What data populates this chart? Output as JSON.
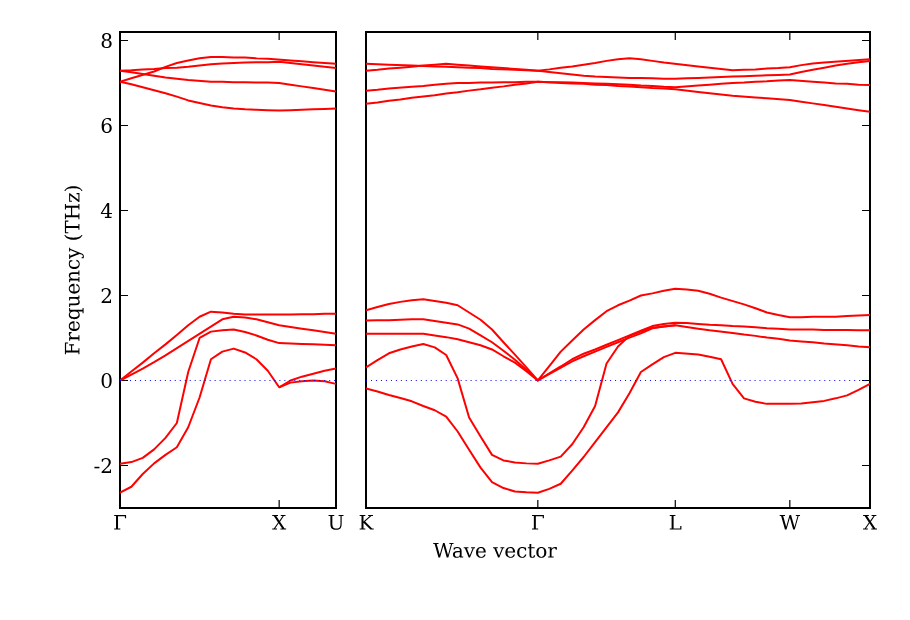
{
  "chart_data": [
    {
      "type": "line",
      "ylabel": "Frequency (THz)",
      "xlabel": "Wave vector",
      "ylim": [
        -3,
        8.2
      ],
      "categories": [
        "Γ",
        null,
        null,
        null,
        null,
        null,
        null,
        null,
        null,
        null,
        null,
        null,
        null,
        null,
        "X",
        null,
        null,
        null,
        null,
        "U"
      ],
      "yticks": [
        -2,
        0,
        2,
        4,
        6,
        8
      ],
      "ref_lines": [
        {
          "axis": "y",
          "value": 0,
          "color": "#0000ff",
          "line_style": "dotted"
        }
      ],
      "series": [
        {
          "color": "#ff0000",
          "values": [
            -2.64,
            -2.5,
            -2.2,
            -1.95,
            -1.75,
            -1.57,
            -1.1,
            -0.4,
            0.5,
            0.68,
            0.75,
            0.66,
            0.5,
            0.23,
            -0.16,
            -0.05,
            -0.02,
            0,
            -0.02,
            -0.08
          ]
        },
        {
          "color": "#ff0000",
          "values": [
            -1.96,
            -1.92,
            -1.82,
            -1.62,
            -1.35,
            -1.0,
            0.2,
            1.0,
            1.15,
            1.18,
            1.2,
            1.14,
            1.06,
            0.96,
            0.88,
            0.87,
            0.86,
            0.85,
            0.84,
            0.83
          ]
        },
        {
          "color": "#ff0000",
          "values": [
            0,
            0.21,
            0.42,
            0.64,
            0.85,
            1.07,
            1.3,
            1.5,
            1.62,
            1.6,
            1.57,
            1.55,
            1.55,
            1.55,
            1.55,
            1.55,
            1.56,
            1.56,
            1.57,
            1.57
          ]
        },
        {
          "color": "#ff0000",
          "values": [
            0,
            0.14,
            0.28,
            0.43,
            0.59,
            0.76,
            0.93,
            1.1,
            1.27,
            1.44,
            1.5,
            1.48,
            1.44,
            1.37,
            1.3,
            1.26,
            1.22,
            1.18,
            1.14,
            1.1
          ]
        },
        {
          "color": "#ff0000",
          "values": [
            null,
            null,
            null,
            null,
            null,
            null,
            null,
            null,
            null,
            null,
            null,
            null,
            null,
            null,
            -0.16,
            0.0,
            0.09,
            0.16,
            0.23,
            0.28
          ]
        },
        {
          "color": "#ff0000",
          "values": [
            7.03,
            7.11,
            7.19,
            7.27,
            7.38,
            7.47,
            7.53,
            7.58,
            7.61,
            7.61,
            7.6,
            7.6,
            7.58,
            7.57,
            7.55,
            7.53,
            7.51,
            7.49,
            7.47,
            7.45
          ]
        },
        {
          "color": "#ff0000",
          "values": [
            7.29,
            7.3,
            7.32,
            7.33,
            7.35,
            7.36,
            7.38,
            7.41,
            7.44,
            7.46,
            7.47,
            7.48,
            7.49,
            7.49,
            7.5,
            7.47,
            7.44,
            7.41,
            7.38,
            7.35
          ]
        },
        {
          "color": "#ff0000",
          "values": [
            7.29,
            7.25,
            7.21,
            7.17,
            7.13,
            7.1,
            7.07,
            7.05,
            7.03,
            7.03,
            7.02,
            7.02,
            7.01,
            7.01,
            7.0,
            6.96,
            6.92,
            6.88,
            6.84,
            6.8
          ]
        },
        {
          "color": "#ff0000",
          "values": [
            7.03,
            6.97,
            6.9,
            6.83,
            6.76,
            6.68,
            6.59,
            6.53,
            6.47,
            6.43,
            6.4,
            6.38,
            6.37,
            6.36,
            6.35,
            6.36,
            6.37,
            6.38,
            6.39,
            6.4
          ]
        }
      ]
    },
    {
      "type": "line",
      "ylim": [
        -3,
        8.2
      ],
      "categories": [
        "K",
        null,
        null,
        null,
        null,
        null,
        null,
        null,
        null,
        null,
        null,
        null,
        null,
        null,
        null,
        "Γ",
        null,
        null,
        null,
        null,
        null,
        null,
        null,
        null,
        null,
        null,
        null,
        "L",
        null,
        null,
        null,
        null,
        null,
        null,
        null,
        null,
        null,
        "W",
        null,
        null,
        null,
        null,
        null,
        null,
        "X"
      ],
      "yticks": [
        -2,
        0,
        2,
        4,
        6,
        8
      ],
      "tick_labels": "x",
      "ref_lines": [
        {
          "axis": "y",
          "value": 0,
          "color": "#0000ff",
          "line_style": "dotted"
        }
      ],
      "series": [
        {
          "color": "#ff0000",
          "values": [
            1.65,
            1.73,
            1.8,
            1.85,
            1.89,
            1.91,
            1.87,
            1.83,
            1.77,
            1.6,
            1.43,
            1.2,
            0.9,
            0.61,
            0.31,
            0,
            0.34,
            0.68,
            0.94,
            1.2,
            1.42,
            1.63,
            1.77,
            1.88,
            2.0,
            2.05,
            2.11,
            2.16,
            2.14,
            2.11,
            2.04,
            1.95,
            1.87,
            1.79,
            1.7,
            1.6,
            1.54,
            1.49,
            1.49,
            1.5,
            1.5,
            1.5,
            1.52,
            1.53,
            1.54
          ]
        },
        {
          "color": "#ff0000",
          "values": [
            1.41,
            1.42,
            1.42,
            1.43,
            1.44,
            1.44,
            1.4,
            1.36,
            1.32,
            1.22,
            1.06,
            0.9,
            0.7,
            0.49,
            0.25,
            0,
            0.17,
            0.33,
            0.5,
            0.63,
            0.73,
            0.84,
            0.95,
            1.06,
            1.17,
            1.28,
            1.33,
            1.36,
            1.35,
            1.33,
            1.31,
            1.3,
            1.28,
            1.27,
            1.25,
            1.23,
            1.22,
            1.2,
            1.2,
            1.2,
            1.19,
            1.19,
            1.19,
            1.18,
            1.18
          ]
        },
        {
          "color": "#ff0000",
          "values": [
            1.1,
            1.1,
            1.1,
            1.1,
            1.1,
            1.1,
            1.06,
            1.02,
            0.97,
            0.9,
            0.83,
            0.73,
            0.57,
            0.42,
            0.22,
            0,
            0.15,
            0.3,
            0.45,
            0.57,
            0.68,
            0.79,
            0.9,
            1.01,
            1.11,
            1.23,
            1.27,
            1.3,
            1.26,
            1.22,
            1.18,
            1.15,
            1.12,
            1.08,
            1.05,
            1.01,
            0.98,
            0.94,
            0.92,
            0.9,
            0.87,
            0.85,
            0.83,
            0.8,
            0.78
          ]
        },
        {
          "color": "#ff0000",
          "values": [
            0.31,
            0.48,
            0.64,
            0.73,
            0.8,
            0.86,
            0.78,
            0.6,
            0.05,
            -0.87,
            -1.32,
            -1.75,
            -1.88,
            -1.93,
            -1.95,
            -1.96,
            -1.88,
            -1.79,
            -1.5,
            -1.1,
            -0.6,
            0.4,
            0.8,
            1.05,
            1.15,
            1.24,
            1.27,
            1.3,
            null,
            null,
            null,
            null,
            null,
            null,
            null,
            null,
            null,
            null,
            null,
            null,
            null,
            null,
            null,
            null,
            null
          ]
        },
        {
          "color": "#ff0000",
          "values": [
            -0.19,
            -0.26,
            -0.34,
            -0.41,
            -0.49,
            -0.6,
            -0.7,
            -0.85,
            -1.2,
            -1.63,
            -2.05,
            -2.39,
            -2.53,
            -2.61,
            -2.63,
            -2.64,
            -2.55,
            -2.43,
            -2.12,
            -1.8,
            -1.45,
            -1.1,
            -0.75,
            -0.3,
            0.2,
            0.38,
            0.55,
            0.65,
            0.63,
            0.61,
            0.56,
            0.5,
            -0.08,
            -0.42,
            -0.5,
            -0.55,
            -0.55,
            -0.55,
            -0.54,
            -0.51,
            -0.48,
            -0.42,
            -0.35,
            -0.22,
            -0.08
          ]
        },
        {
          "color": "#ff0000",
          "values": [
            7.45,
            7.44,
            7.43,
            7.42,
            7.41,
            7.4,
            7.39,
            7.38,
            7.37,
            7.36,
            7.35,
            7.33,
            7.32,
            7.31,
            7.3,
            7.29,
            7.32,
            7.36,
            7.39,
            7.43,
            7.47,
            7.52,
            7.56,
            7.58,
            7.56,
            7.52,
            7.48,
            7.45,
            7.42,
            7.39,
            7.36,
            7.33,
            7.3,
            7.31,
            7.32,
            7.34,
            7.35,
            7.37,
            7.42,
            7.46,
            7.48,
            7.5,
            7.52,
            7.54,
            7.56
          ]
        },
        {
          "color": "#ff0000",
          "values": [
            7.29,
            7.31,
            7.34,
            7.36,
            7.38,
            7.41,
            7.43,
            7.45,
            7.43,
            7.41,
            7.39,
            7.37,
            7.35,
            7.33,
            7.31,
            7.29,
            7.26,
            7.23,
            7.2,
            7.17,
            7.15,
            7.14,
            7.13,
            7.12,
            7.12,
            7.11,
            7.1,
            7.1,
            7.11,
            7.12,
            7.13,
            7.14,
            7.15,
            7.16,
            7.17,
            7.18,
            7.19,
            7.2,
            7.26,
            7.31,
            7.36,
            7.41,
            7.45,
            7.49,
            7.52
          ]
        },
        {
          "color": "#ff0000",
          "values": [
            6.82,
            6.84,
            6.87,
            6.89,
            6.91,
            6.93,
            6.96,
            6.98,
            7.0,
            7.0,
            7.01,
            7.01,
            7.02,
            7.02,
            7.03,
            7.03,
            7.02,
            7.02,
            7.01,
            7.0,
            6.99,
            6.98,
            6.97,
            6.96,
            6.94,
            6.93,
            6.91,
            6.9,
            6.92,
            6.94,
            6.96,
            6.98,
            7.0,
            7.01,
            7.03,
            7.04,
            7.06,
            7.07,
            7.05,
            7.03,
            7.01,
            6.99,
            6.98,
            6.96,
            6.95
          ]
        },
        {
          "color": "#ff0000",
          "values": [
            6.51,
            6.54,
            6.58,
            6.61,
            6.65,
            6.68,
            6.71,
            6.75,
            6.78,
            6.82,
            6.85,
            6.89,
            6.92,
            6.96,
            6.99,
            7.03,
            7.02,
            7.0,
            6.99,
            6.98,
            6.96,
            6.95,
            6.93,
            6.92,
            6.9,
            6.88,
            6.87,
            6.85,
            6.82,
            6.79,
            6.76,
            6.73,
            6.7,
            6.68,
            6.66,
            6.64,
            6.62,
            6.6,
            6.56,
            6.52,
            6.48,
            6.44,
            6.4,
            6.36,
            6.32
          ]
        }
      ]
    }
  ]
}
